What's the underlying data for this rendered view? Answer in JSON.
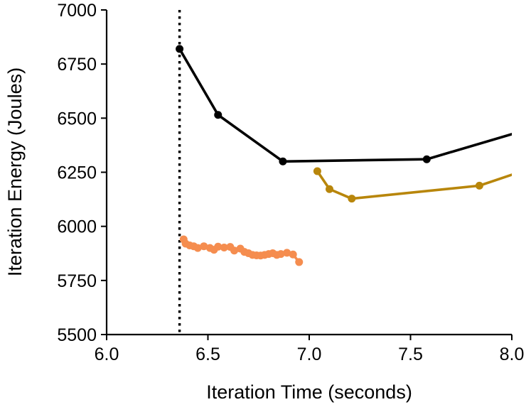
{
  "chart_data": {
    "type": "line",
    "title": "",
    "xlabel": "Iteration Time (seconds)",
    "ylabel": "Iteration Energy (Joules)",
    "xlim": [
      6.0,
      8.0
    ],
    "ylim": [
      5500,
      7000
    ],
    "xticks": [
      6.0,
      6.5,
      7.0,
      7.5,
      8.0
    ],
    "xtick_labels": [
      "6.0",
      "6.5",
      "7.0",
      "7.5",
      "8.0"
    ],
    "yticks": [
      5500,
      5750,
      6000,
      6250,
      6500,
      6750,
      7000
    ],
    "ytick_labels": [
      "5500",
      "5750",
      "6000",
      "6250",
      "6500",
      "6750",
      "7000"
    ],
    "grid": false,
    "legend": "none",
    "vertical_line": {
      "x": 6.36,
      "style": "dotted",
      "color": "#000000"
    },
    "series": [
      {
        "color": "#000000",
        "points": [
          [
            6.36,
            6820
          ],
          [
            6.55,
            6515
          ],
          [
            6.87,
            6300
          ],
          [
            7.58,
            6310
          ],
          [
            8.05,
            6440
          ]
        ]
      },
      {
        "color": "#b8860b",
        "points": [
          [
            7.04,
            6255
          ],
          [
            7.1,
            6172
          ],
          [
            7.21,
            6128
          ],
          [
            7.84,
            6188
          ],
          [
            8.1,
            6270
          ]
        ]
      },
      {
        "color": "#f58d4f",
        "points": [
          [
            6.38,
            5940
          ],
          [
            6.39,
            5920
          ],
          [
            6.41,
            5912
          ],
          [
            6.43,
            5908
          ],
          [
            6.45,
            5900
          ],
          [
            6.48,
            5908
          ],
          [
            6.51,
            5900
          ],
          [
            6.53,
            5892
          ],
          [
            6.55,
            5906
          ],
          [
            6.58,
            5902
          ],
          [
            6.61,
            5905
          ],
          [
            6.63,
            5888
          ],
          [
            6.66,
            5897
          ],
          [
            6.68,
            5882
          ],
          [
            6.7,
            5876
          ],
          [
            6.72,
            5868
          ],
          [
            6.74,
            5866
          ],
          [
            6.76,
            5865
          ],
          [
            6.78,
            5868
          ],
          [
            6.8,
            5872
          ],
          [
            6.82,
            5876
          ],
          [
            6.84,
            5868
          ],
          [
            6.86,
            5872
          ],
          [
            6.89,
            5878
          ],
          [
            6.92,
            5870
          ],
          [
            6.95,
            5835
          ]
        ]
      }
    ]
  }
}
